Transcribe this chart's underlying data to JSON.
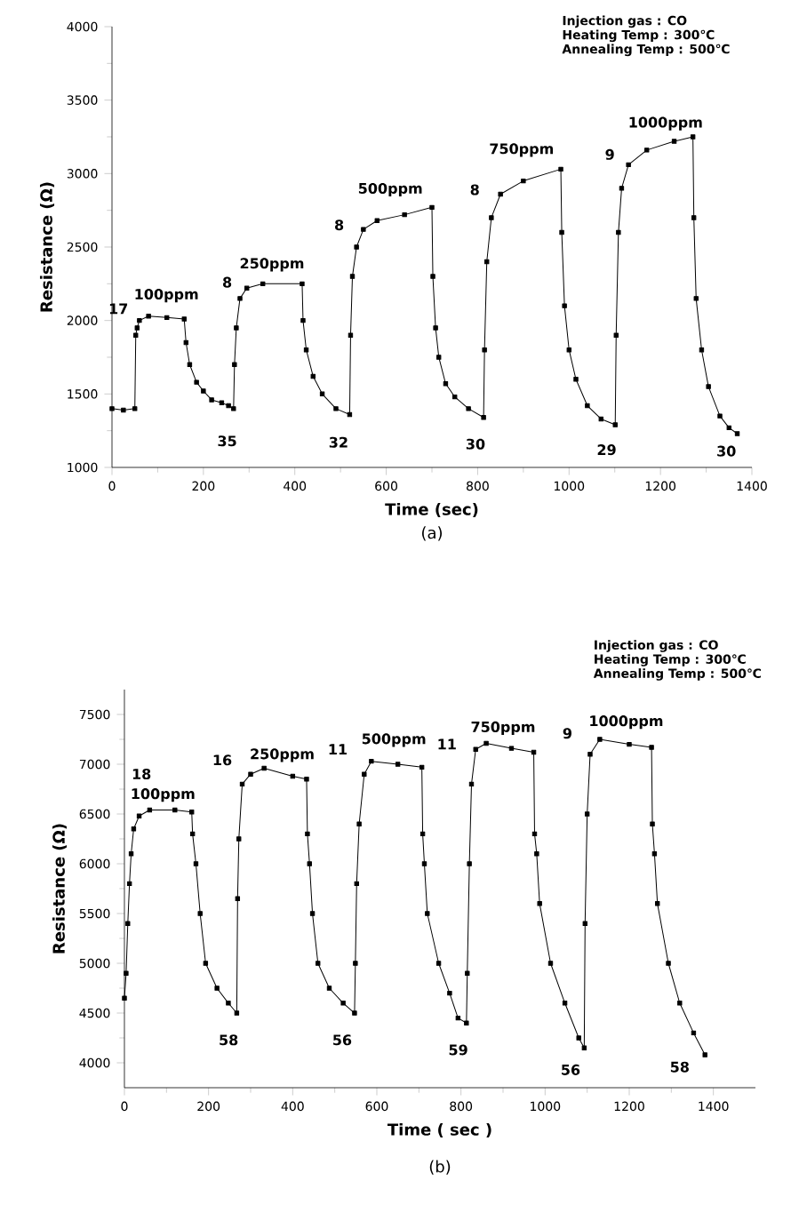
{
  "chart_data": [
    {
      "type": "line",
      "title": "(a)",
      "xlabel": "Time (sec)",
      "ylabel": "Resistance (Ω)",
      "xlim": [
        0,
        1400
      ],
      "ylim": [
        1000,
        4000
      ],
      "xticks": [
        0,
        200,
        400,
        600,
        800,
        1000,
        1200,
        1400
      ],
      "yticks": [
        1000,
        1500,
        2000,
        2500,
        3000,
        3500,
        4000
      ],
      "marker": "square",
      "line_style": "solid",
      "series": [
        {
          "color": "#000000",
          "x": [
            0,
            25,
            50,
            52,
            55,
            60,
            80,
            120,
            158,
            162,
            170,
            185,
            200,
            218,
            240,
            255,
            266,
            268,
            272,
            280,
            295,
            330,
            416,
            418,
            425,
            440,
            460,
            490,
            520,
            522,
            526,
            535,
            550,
            580,
            640,
            700,
            702,
            708,
            715,
            730,
            750,
            780,
            813,
            815,
            820,
            830,
            850,
            900,
            982,
            984,
            990,
            1000,
            1015,
            1040,
            1070,
            1101,
            1103,
            1108,
            1115,
            1130,
            1170,
            1230,
            1271,
            1273,
            1278,
            1290,
            1305,
            1330,
            1350,
            1368
          ],
          "values": [
            1400,
            1390,
            1400,
            1900,
            1950,
            2000,
            2030,
            2020,
            2010,
            1850,
            1700,
            1580,
            1520,
            1460,
            1440,
            1420,
            1400,
            1700,
            1950,
            2150,
            2220,
            2250,
            2250,
            2000,
            1800,
            1620,
            1500,
            1400,
            1360,
            1900,
            2300,
            2500,
            2620,
            2680,
            2720,
            2770,
            2300,
            1950,
            1750,
            1570,
            1480,
            1400,
            1340,
            1800,
            2400,
            2700,
            2860,
            2950,
            3030,
            2600,
            2100,
            1800,
            1600,
            1420,
            1330,
            1290,
            1900,
            2600,
            2900,
            3060,
            3160,
            3220,
            3250,
            2700,
            2150,
            1800,
            1550,
            1350,
            1270,
            1230
          ]
        }
      ],
      "annotations": [
        "Injection gas : CO",
        "Heating Temp : 300℃",
        "Annealing Temp : 500℃",
        "17",
        "100ppm",
        "8",
        "250ppm",
        "8",
        "500ppm",
        "8",
        "750ppm",
        "9",
        "1000ppm",
        "35",
        "32",
        "30",
        "29",
        "30"
      ]
    },
    {
      "type": "line",
      "title": "(b)",
      "xlabel": "Time ( sec )",
      "ylabel": "Resistance (Ω)",
      "xlim": [
        0,
        1500
      ],
      "ylim": [
        3750,
        7750
      ],
      "xticks": [
        0,
        200,
        400,
        600,
        800,
        1000,
        1200,
        1400
      ],
      "yticks": [
        4000,
        4500,
        5000,
        5500,
        6000,
        6500,
        7000,
        7500
      ],
      "marker": "square",
      "line_style": "solid",
      "series": [
        {
          "color": "#000000",
          "x": [
            0,
            4,
            8,
            12,
            16,
            22,
            35,
            60,
            120,
            160,
            162,
            170,
            180,
            193,
            220,
            247,
            267,
            269,
            272,
            280,
            300,
            332,
            400,
            433,
            435,
            440,
            447,
            460,
            487,
            520,
            547,
            549,
            552,
            558,
            570,
            587,
            650,
            707,
            709,
            713,
            720,
            747,
            773,
            793,
            813,
            815,
            820,
            825,
            835,
            860,
            920,
            973,
            975,
            980,
            987,
            1013,
            1047,
            1080,
            1093,
            1095,
            1100,
            1107,
            1130,
            1200,
            1253,
            1255,
            1260,
            1267,
            1293,
            1320,
            1353,
            1380
          ],
          "values": [
            4650,
            4900,
            5400,
            5800,
            6100,
            6350,
            6480,
            6540,
            6540,
            6520,
            6300,
            6000,
            5500,
            5000,
            4750,
            4600,
            4500,
            5650,
            6250,
            6800,
            6900,
            6960,
            6880,
            6850,
            6300,
            6000,
            5500,
            5000,
            4750,
            4600,
            4500,
            5000,
            5800,
            6400,
            6900,
            7030,
            7000,
            6970,
            6300,
            6000,
            5500,
            5000,
            4700,
            4450,
            4400,
            4900,
            6000,
            6800,
            7150,
            7210,
            7160,
            7120,
            6300,
            6100,
            5600,
            5000,
            4600,
            4250,
            4150,
            5400,
            6500,
            7100,
            7250,
            7200,
            7170,
            6400,
            6100,
            5600,
            5000,
            4600,
            4300,
            4080
          ]
        }
      ],
      "annotations": [
        "Injection gas : CO",
        "Heating Temp : 300℃",
        "Annealing Temp : 500℃",
        "18",
        "100ppm",
        "16",
        "250ppm",
        "11",
        "500ppm",
        "11",
        "750ppm",
        "9",
        "1000ppm",
        "58",
        "56",
        "59",
        "56",
        "58"
      ]
    }
  ]
}
